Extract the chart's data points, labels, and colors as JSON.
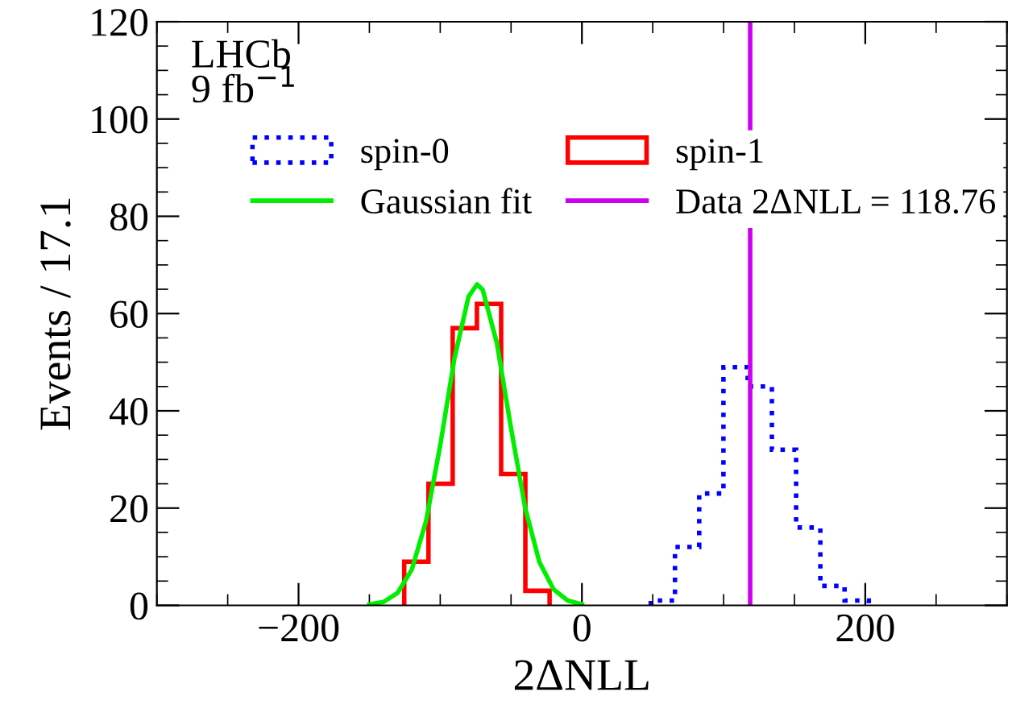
{
  "chart_data": {
    "type": "histogram",
    "xlabel": "2ΔNLL",
    "ylabel": "Events / 17.1",
    "xlim": [
      -300,
      300
    ],
    "xticks": [
      -200,
      0,
      200
    ],
    "ylim": [
      0,
      120
    ],
    "yticks": [
      0,
      20,
      40,
      60,
      80,
      100,
      120
    ],
    "legend": "top",
    "grid": false,
    "annotations": [
      "LHCb\n9 fb$^{−1}$"
    ],
    "series": [
      {
        "name": "spin-0",
        "color": "#0000ff",
        "line_style": "dotted",
        "bins": [
          48.6,
          65.7,
          82.8,
          99.9,
          117.0,
          134.1,
          151.2,
          168.3,
          185.4,
          202.5
        ],
        "values": [
          1,
          12,
          23,
          49,
          45,
          32,
          16,
          4,
          1
        ]
      },
      {
        "name": "spin-1",
        "color": "#ff0000",
        "line_style": "solid",
        "bins": [
          -125.4,
          -108.3,
          -91.2,
          -74.1,
          -57.0,
          -39.9,
          -22.8
        ],
        "values": [
          9,
          25,
          57,
          62,
          27,
          3
        ]
      },
      {
        "name": "Gaussian fit",
        "type": "line",
        "color": "#00ee00",
        "line_style": "solid",
        "x": [
          -150,
          -140,
          -130,
          -120,
          -110,
          -100,
          -90,
          -80,
          -74,
          -70,
          -60,
          -50,
          -40,
          -30,
          -20,
          -10,
          0
        ],
        "values": [
          0.2,
          0.7,
          2.6,
          7.4,
          17.3,
          32.9,
          50.7,
          63.5,
          66,
          64.9,
          53.9,
          36.4,
          20,
          8.9,
          3.3,
          1.0,
          0.2
        ]
      }
    ],
    "ref_lines": [
      {
        "axis": "x",
        "value": 118.76,
        "label": "Data 2ΔNLL = 118.76",
        "color": "#cc00ee"
      }
    ]
  }
}
